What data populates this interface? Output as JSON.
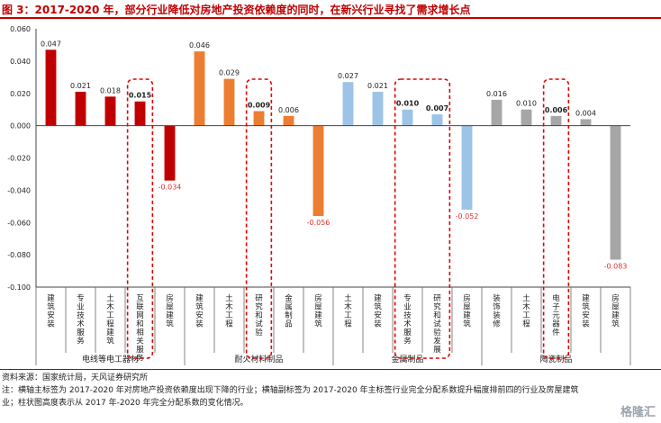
{
  "header": {
    "title": "图 3：2017-2020 年，部分行业降低对房地产投资依赖度的同时，在新兴行业寻找了需求增长点"
  },
  "chart_data": {
    "type": "bar",
    "ylim": [
      -0.1,
      0.06
    ],
    "yticks": [
      -0.1,
      -0.08,
      -0.06,
      -0.04,
      -0.02,
      0.0,
      0.02,
      0.04,
      0.06
    ],
    "ytick_labels": [
      "-0.100",
      "-0.080",
      "-0.060",
      "-0.040",
      "-0.020",
      "0.000",
      "0.020",
      "0.040",
      "0.060"
    ],
    "colors": {
      "red": "#c00000",
      "orange": "#ed7d31",
      "blue": "#9dc3e6",
      "gray": "#a6a6a6",
      "negative_label": "#e03030",
      "highlight": "#e00000"
    },
    "groups": [
      {
        "name": "电线等电工器材",
        "bars": [
          {
            "category": "建筑安装",
            "value": 0.047,
            "label": "0.047",
            "color": "red",
            "highlight": false
          },
          {
            "category": "专业技术服务",
            "value": 0.021,
            "label": "0.021",
            "color": "red",
            "highlight": false
          },
          {
            "category": "土木工程建筑",
            "value": 0.018,
            "label": "0.018",
            "color": "red",
            "highlight": false
          },
          {
            "category": "互联网和相关服务",
            "value": 0.015,
            "label": "0.015",
            "color": "red",
            "highlight": true
          },
          {
            "category": "房屋建筑",
            "value": -0.034,
            "label": "-0.034",
            "color": "red",
            "highlight": false
          }
        ]
      },
      {
        "name": "耐火材料制品",
        "bars": [
          {
            "category": "建筑安装",
            "value": 0.046,
            "label": "0.046",
            "color": "orange",
            "highlight": false
          },
          {
            "category": "土木工程",
            "value": 0.029,
            "label": "0.029",
            "color": "orange",
            "highlight": false
          },
          {
            "category": "研究和试验",
            "value": 0.009,
            "label": "0.009",
            "color": "orange",
            "highlight": true
          },
          {
            "category": "金属制品",
            "value": 0.006,
            "label": "0.006",
            "color": "orange",
            "highlight": false
          },
          {
            "category": "房屋建筑",
            "value": -0.056,
            "label": "-0.056",
            "color": "orange",
            "highlight": false
          }
        ]
      },
      {
        "name": "金属制品",
        "bars": [
          {
            "category": "土木工程",
            "value": 0.027,
            "label": "0.027",
            "color": "blue",
            "highlight": false
          },
          {
            "category": "建筑安装",
            "value": 0.021,
            "label": "0.021",
            "color": "blue",
            "highlight": false
          },
          {
            "category": "专业技术服务",
            "value": 0.01,
            "label": "0.010",
            "color": "blue",
            "highlight": true
          },
          {
            "category": "研究和试验发展",
            "value": 0.007,
            "label": "0.007",
            "color": "blue",
            "highlight": true
          },
          {
            "category": "房屋建筑",
            "value": -0.052,
            "label": "-0.052",
            "color": "blue",
            "highlight": false
          }
        ]
      },
      {
        "name": "陶瓷制品",
        "bars": [
          {
            "category": "装饰装修",
            "value": 0.016,
            "label": "0.016",
            "color": "gray",
            "highlight": false
          },
          {
            "category": "土木工程",
            "value": 0.01,
            "label": "0.010",
            "color": "gray",
            "highlight": false
          },
          {
            "category": "电子元器件",
            "value": 0.006,
            "label": "0.006",
            "color": "gray",
            "highlight": true
          },
          {
            "category": "建筑安装",
            "value": 0.004,
            "label": "0.004",
            "color": "gray",
            "highlight": false
          },
          {
            "category": "房屋建筑",
            "value": -0.083,
            "label": "-0.083",
            "color": "gray",
            "highlight": false
          }
        ]
      }
    ],
    "highlight_boxes": [
      {
        "group": 0,
        "from": 3,
        "to": 3
      },
      {
        "group": 1,
        "from": 2,
        "to": 2
      },
      {
        "group": 2,
        "from": 2,
        "to": 3
      },
      {
        "group": 3,
        "from": 2,
        "to": 2
      }
    ]
  },
  "footer": {
    "source": "资料来源：国家统计局，天风证券研究所",
    "note_line1": "注：横轴主标签为 2017-2020 年对房地产投资依赖度出现下降的行业；横轴副标签为 2017-2020 年主标签行业完全分配系数提升幅度排前四的行业及房屋建筑",
    "note_line2": "业；柱状图高度表示从 2017 年-2020 年完全分配系数的变化情况。"
  },
  "watermark": "格隆汇"
}
